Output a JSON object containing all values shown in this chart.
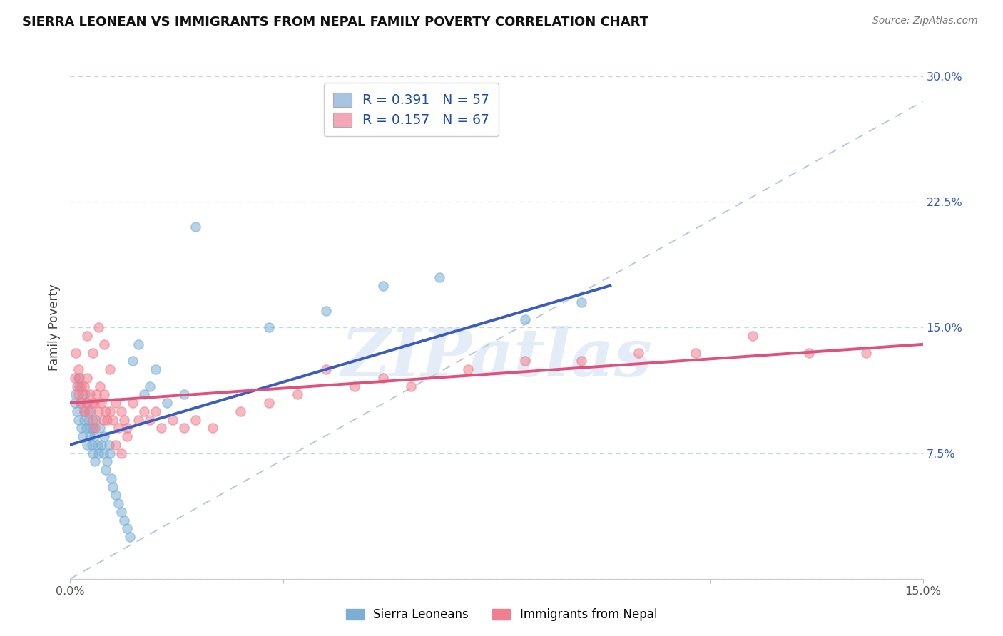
{
  "title": "SIERRA LEONEAN VS IMMIGRANTS FROM NEPAL FAMILY POVERTY CORRELATION CHART",
  "source": "Source: ZipAtlas.com",
  "ylabel": "Family Poverty",
  "xlim": [
    0.0,
    15.0
  ],
  "ylim": [
    0.0,
    30.0
  ],
  "yticks": [
    0.0,
    7.5,
    15.0,
    22.5,
    30.0
  ],
  "legend_color1": "#a8c4e0",
  "legend_color2": "#f4a7b9",
  "scatter_color1": "#7bafd4",
  "scatter_color2": "#f08090",
  "line_color1": "#3a5bbf",
  "line_color2": "#e0507a",
  "trendline_color": "#b8c8d8",
  "background_color": "#ffffff",
  "grid_color": "#c8d4e4",
  "watermark": "ZIPatlas",
  "sierra_x": [
    0.08,
    0.1,
    0.12,
    0.14,
    0.15,
    0.16,
    0.18,
    0.2,
    0.22,
    0.24,
    0.25,
    0.26,
    0.28,
    0.3,
    0.3,
    0.32,
    0.34,
    0.35,
    0.36,
    0.38,
    0.4,
    0.4,
    0.42,
    0.44,
    0.45,
    0.48,
    0.5,
    0.52,
    0.55,
    0.58,
    0.6,
    0.62,
    0.65,
    0.68,
    0.7,
    0.72,
    0.75,
    0.8,
    0.85,
    0.9,
    0.95,
    1.0,
    1.05,
    1.1,
    1.2,
    1.3,
    1.4,
    1.5,
    1.7,
    2.0,
    2.2,
    3.5,
    4.5,
    5.5,
    6.5,
    8.0,
    9.0
  ],
  "sierra_y": [
    10.5,
    11.0,
    10.0,
    9.5,
    12.0,
    11.5,
    10.5,
    9.0,
    8.5,
    9.5,
    10.0,
    11.0,
    9.0,
    8.0,
    10.5,
    9.5,
    8.5,
    9.0,
    10.0,
    8.0,
    7.5,
    9.0,
    8.5,
    7.0,
    9.5,
    8.0,
    7.5,
    9.0,
    8.0,
    7.5,
    8.5,
    6.5,
    7.0,
    8.0,
    7.5,
    6.0,
    5.5,
    5.0,
    4.5,
    4.0,
    3.5,
    3.0,
    2.5,
    13.0,
    14.0,
    11.0,
    11.5,
    12.5,
    10.5,
    11.0,
    21.0,
    15.0,
    16.0,
    17.5,
    18.0,
    15.5,
    16.5
  ],
  "nepal_x": [
    0.08,
    0.1,
    0.12,
    0.14,
    0.15,
    0.16,
    0.18,
    0.2,
    0.22,
    0.24,
    0.25,
    0.28,
    0.3,
    0.32,
    0.35,
    0.38,
    0.4,
    0.42,
    0.44,
    0.46,
    0.5,
    0.52,
    0.55,
    0.58,
    0.6,
    0.62,
    0.65,
    0.7,
    0.75,
    0.8,
    0.85,
    0.9,
    0.95,
    1.0,
    1.1,
    1.2,
    1.3,
    1.4,
    1.5,
    1.6,
    1.8,
    2.0,
    2.2,
    2.5,
    3.0,
    3.5,
    4.0,
    4.5,
    5.0,
    5.5,
    6.0,
    7.0,
    8.0,
    9.0,
    10.0,
    11.0,
    12.0,
    13.0,
    14.0,
    0.3,
    0.4,
    0.5,
    0.6,
    0.7,
    0.8,
    0.9,
    1.0
  ],
  "nepal_y": [
    12.0,
    13.5,
    11.5,
    12.5,
    11.0,
    12.0,
    10.5,
    11.5,
    11.0,
    10.0,
    11.5,
    10.5,
    12.0,
    10.0,
    11.0,
    10.5,
    9.5,
    10.5,
    9.0,
    11.0,
    10.0,
    11.5,
    10.5,
    9.5,
    11.0,
    10.0,
    9.5,
    10.0,
    9.5,
    10.5,
    9.0,
    10.0,
    9.5,
    9.0,
    10.5,
    9.5,
    10.0,
    9.5,
    10.0,
    9.0,
    9.5,
    9.0,
    9.5,
    9.0,
    10.0,
    10.5,
    11.0,
    12.5,
    11.5,
    12.0,
    11.5,
    12.5,
    13.0,
    13.0,
    13.5,
    13.5,
    14.5,
    13.5,
    13.5,
    14.5,
    13.5,
    15.0,
    14.0,
    12.5,
    8.0,
    7.5,
    8.5
  ]
}
